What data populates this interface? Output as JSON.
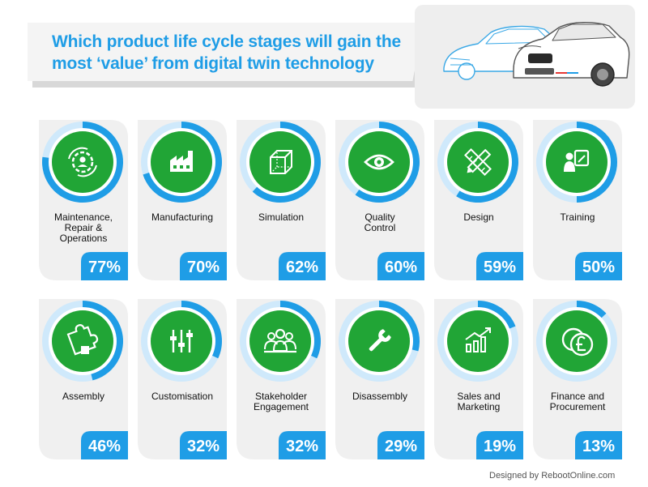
{
  "title": "Which product life cycle stages will gain the most ‘value’ from digital twin technology",
  "credit": "Designed by RebootOnline.com",
  "colors": {
    "blue": "#1f9de6",
    "green": "#21a536",
    "ring_bg": "#cfe9fb",
    "card": "#f0f0f0",
    "value_box": "#1f9de6"
  },
  "chart_data": {
    "type": "bar",
    "categories": [
      "Maintenance, Repair & Operations",
      "Manufacturing",
      "Simulation",
      "Quality Control",
      "Design",
      "Training",
      "Assembly",
      "Customisation",
      "Stakeholder Engagement",
      "Disassembly",
      "Sales and Marketing",
      "Finance and Procurement"
    ],
    "values": [
      77,
      70,
      62,
      60,
      59,
      50,
      46,
      32,
      32,
      29,
      19,
      13
    ],
    "value_labels": [
      "77%",
      "70%",
      "62%",
      "60%",
      "59%",
      "50%",
      "46%",
      "32%",
      "32%",
      "29%",
      "19%",
      "13%"
    ],
    "label_lines": [
      [
        "Maintenance,",
        "Repair &",
        "Operations"
      ],
      [
        "Manufacturing"
      ],
      [
        "Simulation"
      ],
      [
        "Quality",
        "Control"
      ],
      [
        "Design"
      ],
      [
        "Training"
      ],
      [
        "Assembly"
      ],
      [
        "Customisation"
      ],
      [
        "Stakeholder",
        "Engagement"
      ],
      [
        "Disassembly"
      ],
      [
        "Sales and",
        "Marketing"
      ],
      [
        "Finance and",
        "Procurement"
      ]
    ],
    "icons": [
      "gear-person-icon",
      "factory-icon",
      "cube-icon",
      "eye-icon",
      "pencil-ruler-icon",
      "presentation-icon",
      "puzzle-icon",
      "sliders-icon",
      "team-icon",
      "wrench-icon",
      "growth-chart-icon",
      "pound-icon"
    ],
    "unit": "%",
    "ylim": [
      0,
      100
    ]
  }
}
